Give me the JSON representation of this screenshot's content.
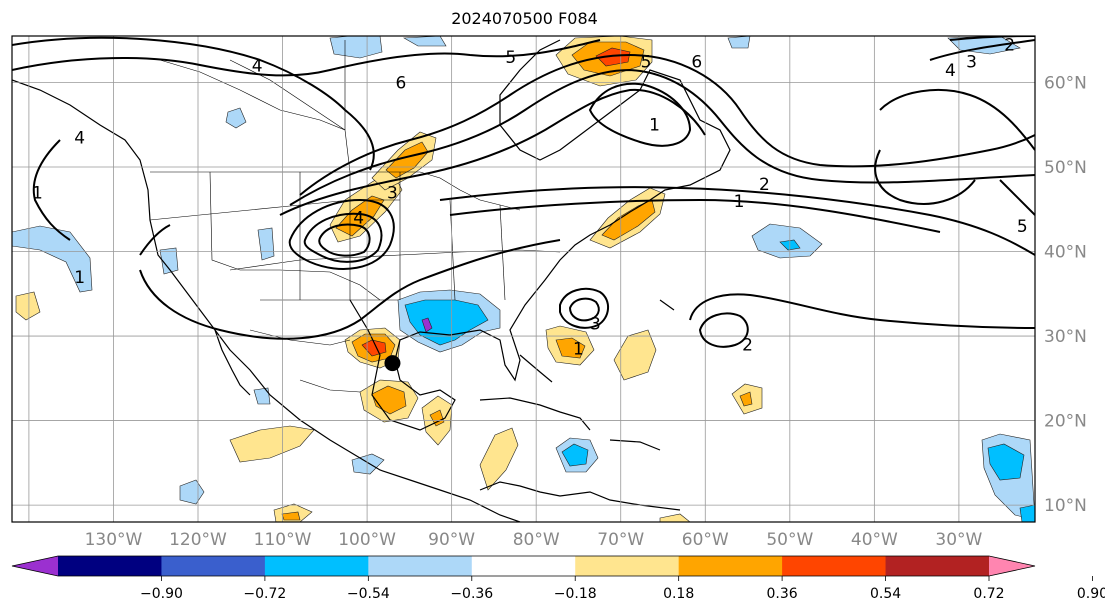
{
  "title": "2024070500 F084",
  "map": {
    "projection": "equirectangular",
    "lon_range": [
      -142,
      -21
    ],
    "lat_range": [
      8,
      65.5
    ],
    "grid_lons": [
      -140,
      -130,
      -120,
      -110,
      -100,
      -90,
      -80,
      -70,
      -60,
      -50,
      -40,
      -30
    ],
    "grid_lats": [
      10,
      20,
      30,
      40,
      50,
      60
    ],
    "lon_labels": [
      "130°W",
      "120°W",
      "110°W",
      "100°W",
      "90°W",
      "80°W",
      "70°W",
      "60°W",
      "50°W",
      "40°W",
      "30°W"
    ],
    "lat_labels": [
      "10°N",
      "20°N",
      "30°N",
      "40°N",
      "50°N",
      "60°N"
    ],
    "storm_marker": {
      "lon": -97,
      "lat": 26.8
    }
  },
  "colorbar": {
    "ticks": [
      "−0.90",
      "−0.72",
      "−0.54",
      "−0.36",
      "−0.18",
      "0.18",
      "0.36",
      "0.54",
      "0.72",
      "0.90"
    ],
    "colors": [
      "#9b30d0",
      "#000080",
      "#3a5fcd",
      "#00bfff",
      "#add8f8",
      "#ffffff",
      "#ffe58f",
      "#ffa500",
      "#ff4500",
      "#b22222",
      "#ff85b0"
    ]
  },
  "contour_labels": [
    {
      "text": "4",
      "lon": -113,
      "lat": 62
    },
    {
      "text": "6",
      "lon": -96,
      "lat": 60
    },
    {
      "text": "5",
      "lon": -83,
      "lat": 63
    },
    {
      "text": "5",
      "lon": -67,
      "lat": 62.5
    },
    {
      "text": "6",
      "lon": -61,
      "lat": 62.5
    },
    {
      "text": "1",
      "lon": -66,
      "lat": 55
    },
    {
      "text": "4",
      "lon": -134,
      "lat": 53.5
    },
    {
      "text": "1",
      "lon": -139,
      "lat": 47
    },
    {
      "text": "3",
      "lon": -97,
      "lat": 47
    },
    {
      "text": "4",
      "lon": -101,
      "lat": 44
    },
    {
      "text": "2",
      "lon": -53,
      "lat": 48
    },
    {
      "text": "1",
      "lon": -56,
      "lat": 46
    },
    {
      "text": "1",
      "lon": -134,
      "lat": 37
    },
    {
      "text": "3",
      "lon": -73,
      "lat": 31.5
    },
    {
      "text": "1",
      "lon": -75,
      "lat": 28.5
    },
    {
      "text": "2",
      "lon": -55,
      "lat": 29
    },
    {
      "text": "5",
      "lon": -22.5,
      "lat": 43
    },
    {
      "text": "4",
      "lon": -31,
      "lat": 61.5
    },
    {
      "text": "3",
      "lon": -28.5,
      "lat": 62.5
    },
    {
      "text": "2",
      "lon": -24,
      "lat": 64.5
    }
  ]
}
